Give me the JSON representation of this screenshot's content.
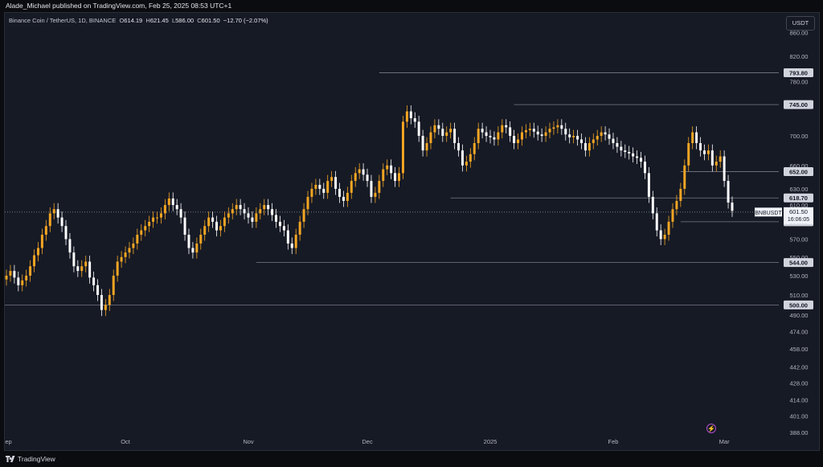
{
  "header": {
    "publish_line": "Alade_Michael published on TradingView.com, Feb 25, 2025 08:53 UTC+1"
  },
  "footer": {
    "brand": "TradingView"
  },
  "legend": {
    "symbol": "Binance Coin / TetherUS, 1D, BINANCE",
    "o_label": "O",
    "o_value": "614.19",
    "h_label": "H",
    "h_value": "621.45",
    "l_label": "L",
    "l_value": "586.00",
    "c_label": "C",
    "c_value": "601.50",
    "change": "−12.70 (−2.07%)"
  },
  "currency_button": "USDT",
  "colors": {
    "background": "#161a25",
    "up": "#f5a623",
    "down": "#ffffff",
    "text": "#d1d4dc",
    "level_line": "#787b86"
  },
  "chart_data": {
    "type": "candlestick",
    "symbol": "BNBUSDT",
    "y_scale": "log",
    "y_ticks": [
      "860.00",
      "820.00",
      "780.00",
      "700.00",
      "660.00",
      "630.00",
      "610.00",
      "570.00",
      "550.00",
      "530.00",
      "510.00",
      "490.00",
      "474.00",
      "458.00",
      "442.00",
      "428.00",
      "414.00",
      "401.00",
      "388.00"
    ],
    "x_ticks": [
      "Sep",
      "Oct",
      "Nov",
      "Dec",
      "2025",
      "Feb",
      "Mar"
    ],
    "x_tick_dates": [
      "2024-09-01",
      "2024-10-01",
      "2024-11-01",
      "2024-12-01",
      "2025-01-01",
      "2025-02-01",
      "2025-03-01"
    ],
    "start_date": "2024-08-01",
    "last_price": {
      "label": "BNBUSDT",
      "price": "601.50",
      "countdown": "16:06:05"
    },
    "levels": [
      {
        "price": 793.8,
        "label": "793.80",
        "from": "2024-12-04"
      },
      {
        "price": 745.0,
        "label": "745.00",
        "from": "2025-01-07"
      },
      {
        "price": 652.0,
        "label": "652.00",
        "from": "2025-02-18"
      },
      {
        "price": 618.7,
        "label": "618.70",
        "from": "2024-12-22"
      },
      {
        "price": 590.0,
        "label": "590.00",
        "from": "2025-02-18"
      },
      {
        "price": 544.0,
        "label": "544.00",
        "from": "2024-11-03"
      },
      {
        "price": 500.0,
        "label": "500.00",
        "from": "2024-08-14"
      }
    ],
    "closes": [
      530,
      535,
      528,
      520,
      525,
      530,
      540,
      552,
      560,
      575,
      585,
      600,
      605,
      595,
      585,
      570,
      555,
      540,
      535,
      540,
      545,
      528,
      520,
      510,
      495,
      500,
      510,
      530,
      545,
      550,
      555,
      560,
      565,
      575,
      580,
      585,
      590,
      595,
      595,
      600,
      610,
      618,
      610,
      605,
      595,
      575,
      560,
      555,
      565,
      575,
      585,
      595,
      590,
      580,
      585,
      595,
      600,
      605,
      610,
      605,
      600,
      595,
      590,
      600,
      605,
      610,
      605,
      598,
      590,
      585,
      580,
      565,
      560,
      575,
      590,
      605,
      620,
      630,
      635,
      630,
      625,
      640,
      645,
      630,
      620,
      615,
      625,
      640,
      650,
      655,
      648,
      640,
      620,
      625,
      640,
      655,
      660,
      650,
      640,
      650,
      720,
      735,
      725,
      720,
      700,
      680,
      690,
      705,
      715,
      710,
      700,
      705,
      710,
      690,
      680,
      660,
      665,
      675,
      690,
      710,
      705,
      700,
      698,
      695,
      705,
      715,
      712,
      700,
      690,
      695,
      705,
      708,
      710,
      706,
      702,
      700,
      705,
      710,
      712,
      715,
      710,
      702,
      698,
      700,
      695,
      690,
      680,
      690,
      695,
      700,
      705,
      702,
      696,
      690,
      685,
      680,
      678,
      676,
      672,
      670,
      665,
      650,
      620,
      600,
      580,
      570,
      575,
      590,
      605,
      615,
      630,
      660,
      690,
      705,
      690,
      680,
      675,
      680,
      660,
      665,
      672,
      640,
      613,
      603
    ]
  }
}
